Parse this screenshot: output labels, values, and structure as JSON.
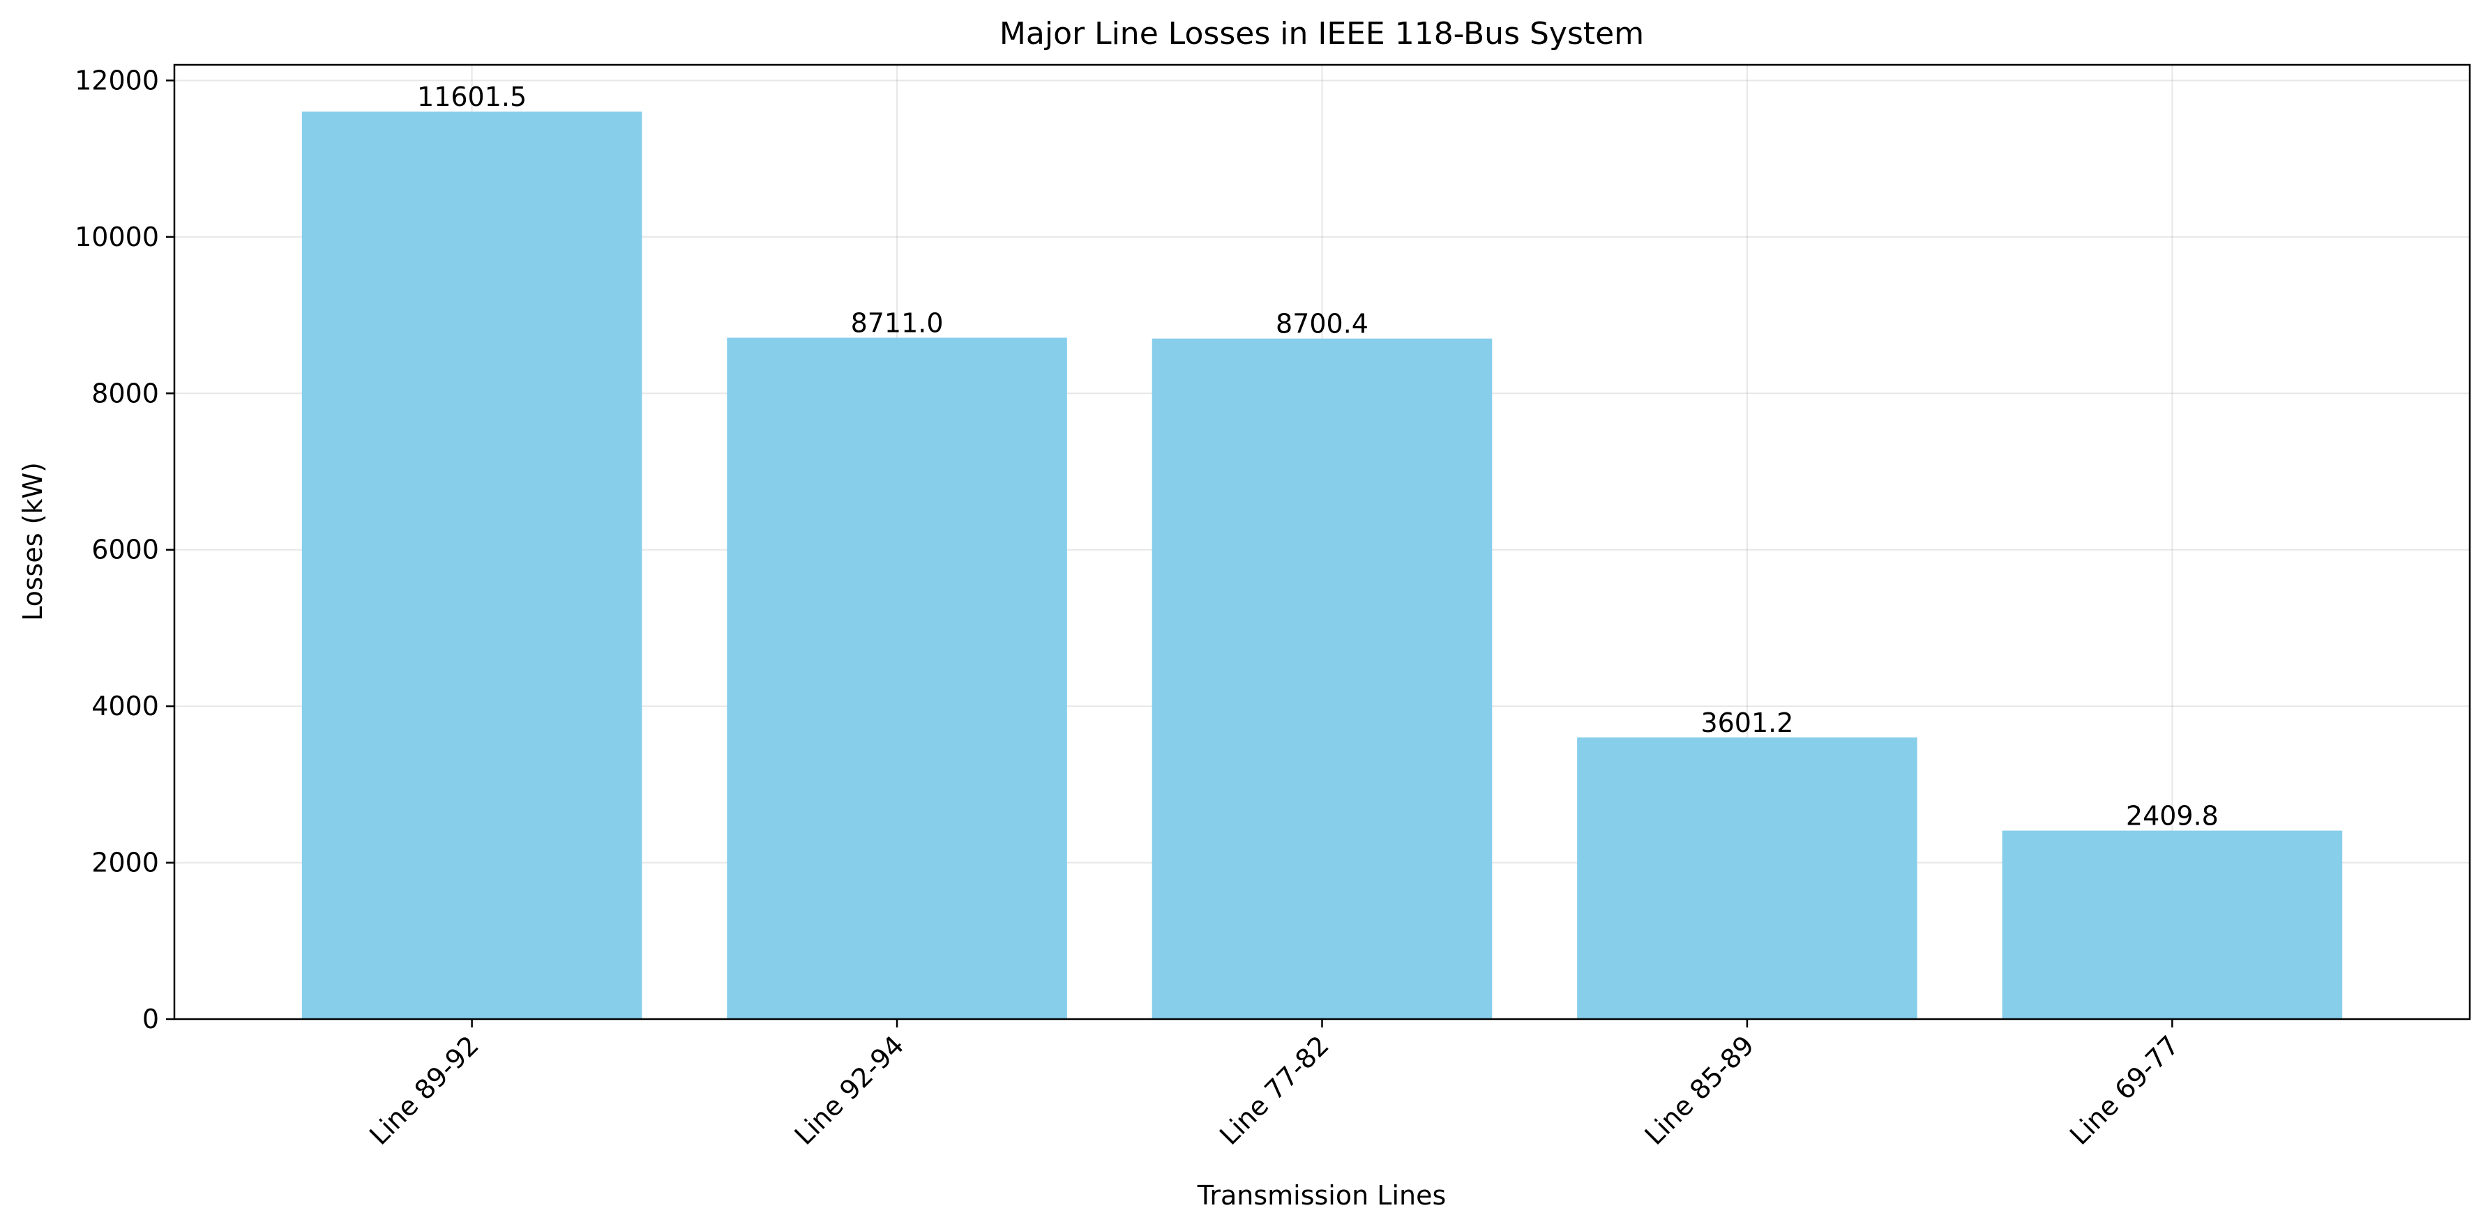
{
  "chart_data": {
    "type": "bar",
    "title": "Major Line Losses in IEEE 118-Bus System",
    "xlabel": "Transmission Lines",
    "ylabel": "Losses (kW)",
    "categories": [
      "Line 89-92",
      "Line 92-94",
      "Line 77-82",
      "Line 85-89",
      "Line 69-77"
    ],
    "values": [
      11601.5,
      8711.0,
      8700.4,
      3601.2,
      2409.8
    ],
    "data_labels": [
      "11601.5",
      "8711.0",
      "8700.4",
      "3601.2",
      "2409.8"
    ],
    "ylim": [
      0,
      12200
    ],
    "yticks": [
      0,
      2000,
      4000,
      6000,
      8000,
      10000,
      12000
    ],
    "ytick_labels": [
      "0",
      "2000",
      "4000",
      "6000",
      "8000",
      "10000",
      "12000"
    ],
    "grid": true,
    "bar_color": "#87CEEB"
  }
}
